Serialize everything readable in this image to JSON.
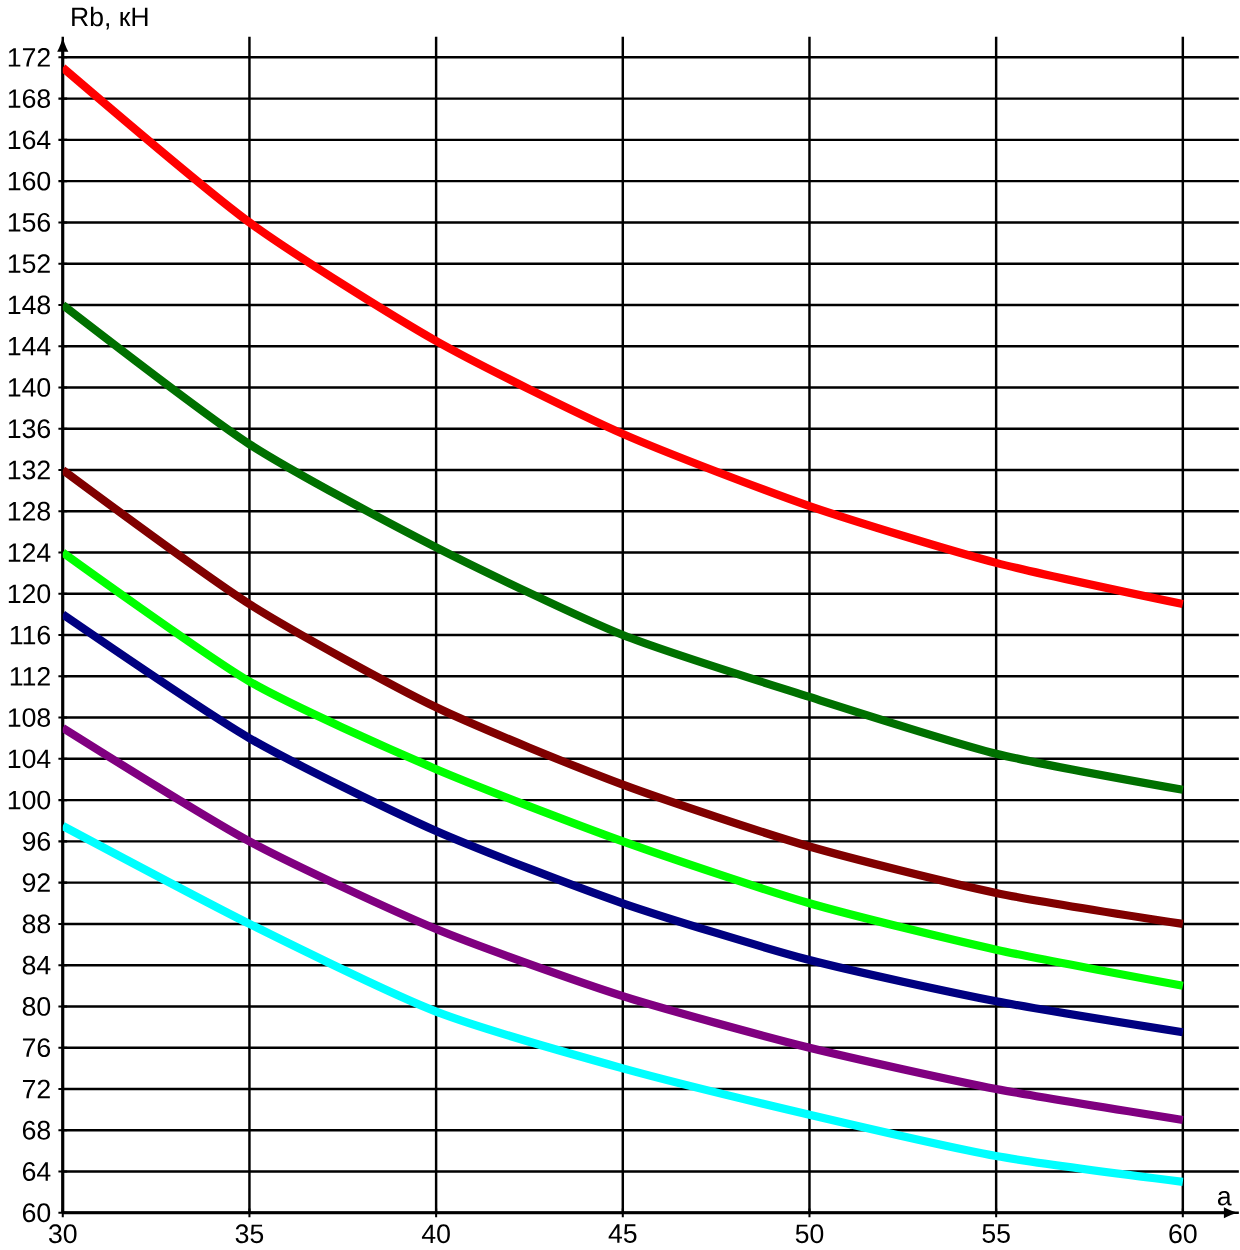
{
  "chart_data": {
    "type": "line",
    "xlabel": "a",
    "ylabel": "Rb, кН",
    "x": [
      30,
      35,
      40,
      45,
      50,
      55,
      60
    ],
    "xlim": [
      30,
      61.5
    ],
    "ylim": [
      60,
      174
    ],
    "xticks": [
      30,
      35,
      40,
      45,
      50,
      55,
      60
    ],
    "yticks": [
      60,
      64,
      68,
      72,
      76,
      80,
      84,
      88,
      92,
      96,
      100,
      104,
      108,
      112,
      116,
      120,
      124,
      128,
      132,
      136,
      140,
      144,
      148,
      152,
      156,
      160,
      164,
      168,
      172
    ],
    "grid": true,
    "marker": "none",
    "line_style": "solid",
    "series": [
      {
        "color": "#ff0000",
        "values": [
          171,
          156,
          144.5,
          135.5,
          128.5,
          123,
          119
        ]
      },
      {
        "color": "#007000",
        "values": [
          148,
          134.5,
          124.5,
          116,
          110,
          104.5,
          101
        ]
      },
      {
        "color": "#800000",
        "values": [
          132,
          119,
          109,
          101.5,
          95.5,
          91,
          88
        ]
      },
      {
        "color": "#00ff00",
        "values": [
          124,
          111.5,
          103,
          96,
          90,
          85.5,
          82
        ]
      },
      {
        "color": "#000080",
        "values": [
          118,
          106,
          97,
          90,
          84.5,
          80.5,
          77.5
        ]
      },
      {
        "color": "#800080",
        "values": [
          107,
          96,
          87.5,
          81,
          76,
          72,
          69
        ]
      },
      {
        "color": "#00ffff",
        "values": [
          97.5,
          88,
          79.5,
          74,
          69.5,
          65.5,
          63
        ]
      }
    ]
  }
}
